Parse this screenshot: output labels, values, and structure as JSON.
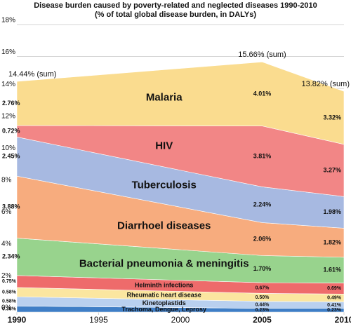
{
  "chart_data": {
    "type": "stacked_area",
    "title": "Disease burden caused by poverty-related and neglected diseases 1990-2010",
    "subtitle": "(% of total global disease burden, in DALYs)",
    "x": [
      1990,
      2005,
      2010
    ],
    "xlim": [
      1990,
      2010
    ],
    "xticks": [
      1990,
      1995,
      2000,
      2005,
      2010
    ],
    "ylim": [
      0,
      18
    ],
    "yticks": [
      {
        "value": 0,
        "label": "0%"
      },
      {
        "value": 2,
        "label": "2%"
      },
      {
        "value": 4,
        "label": "4%"
      },
      {
        "value": 6,
        "label": "6%"
      },
      {
        "value": 8,
        "label": "8%"
      },
      {
        "value": 10,
        "label": "10%"
      },
      {
        "value": 12,
        "label": "12%"
      },
      {
        "value": 14,
        "label": "14%"
      },
      {
        "value": 16,
        "label": "16%"
      },
      {
        "value": 18,
        "label": "18%"
      }
    ],
    "grid": true,
    "series": [
      {
        "name": "Trachoma, Dengue, Leprosy",
        "color": "#3f7ec6",
        "values": [
          0.38,
          0.23,
          0.23
        ],
        "value_labels": [
          "0.38%",
          "0.23%",
          "0.23%"
        ]
      },
      {
        "name": "Kinetoplastids",
        "color": "#b9d0ef",
        "values": [
          0.58,
          0.44,
          0.41
        ],
        "value_labels": [
          "0.58%",
          "0.44%",
          "0.41%"
        ]
      },
      {
        "name": "Rheumatic heart disease",
        "color": "#fbe6a0",
        "values": [
          0.58,
          0.5,
          0.49
        ],
        "value_labels": [
          "0.58%",
          "0.50%",
          "0.49%"
        ]
      },
      {
        "name": "Helminth infections",
        "color": "#ee6b6b",
        "values": [
          0.75,
          0.67,
          0.69
        ],
        "value_labels": [
          "0.75%",
          "0.67%",
          "0.69%"
        ]
      },
      {
        "name": "Bacterial pneumonia & meningitis",
        "color": "#98d38d",
        "values": [
          2.34,
          1.7,
          1.61
        ],
        "value_labels": [
          "2.34%",
          "1.70%",
          "1.61%"
        ]
      },
      {
        "name": "Diarrhoel diseases",
        "color": "#f7ac7e",
        "values": [
          3.88,
          2.06,
          1.82
        ],
        "value_labels": [
          "3.88%",
          "2.06%",
          "1.82%"
        ]
      },
      {
        "name": "Tuberculosis",
        "color": "#a7b9e1",
        "values": [
          2.45,
          2.24,
          1.98
        ],
        "value_labels": [
          "2.45%",
          "2.24%",
          "1.98%"
        ]
      },
      {
        "name": "HIV",
        "color": "#f28686",
        "values": [
          0.72,
          3.81,
          3.27
        ],
        "value_labels": [
          "0.72%",
          "3.81%",
          "3.27%"
        ]
      },
      {
        "name": "Malaria",
        "color": "#fadc8f",
        "values": [
          2.76,
          4.01,
          3.32
        ],
        "value_labels": [
          "2.76%",
          "4.01%",
          "3.32%"
        ]
      }
    ],
    "totals": [
      {
        "x": 1990,
        "value": 14.44,
        "label": "14.44% (sum)"
      },
      {
        "x": 2005,
        "value": 15.66,
        "label": "15.66% (sum)"
      },
      {
        "x": 2010,
        "value": 13.82,
        "label": "13.82% (sum)"
      }
    ]
  }
}
